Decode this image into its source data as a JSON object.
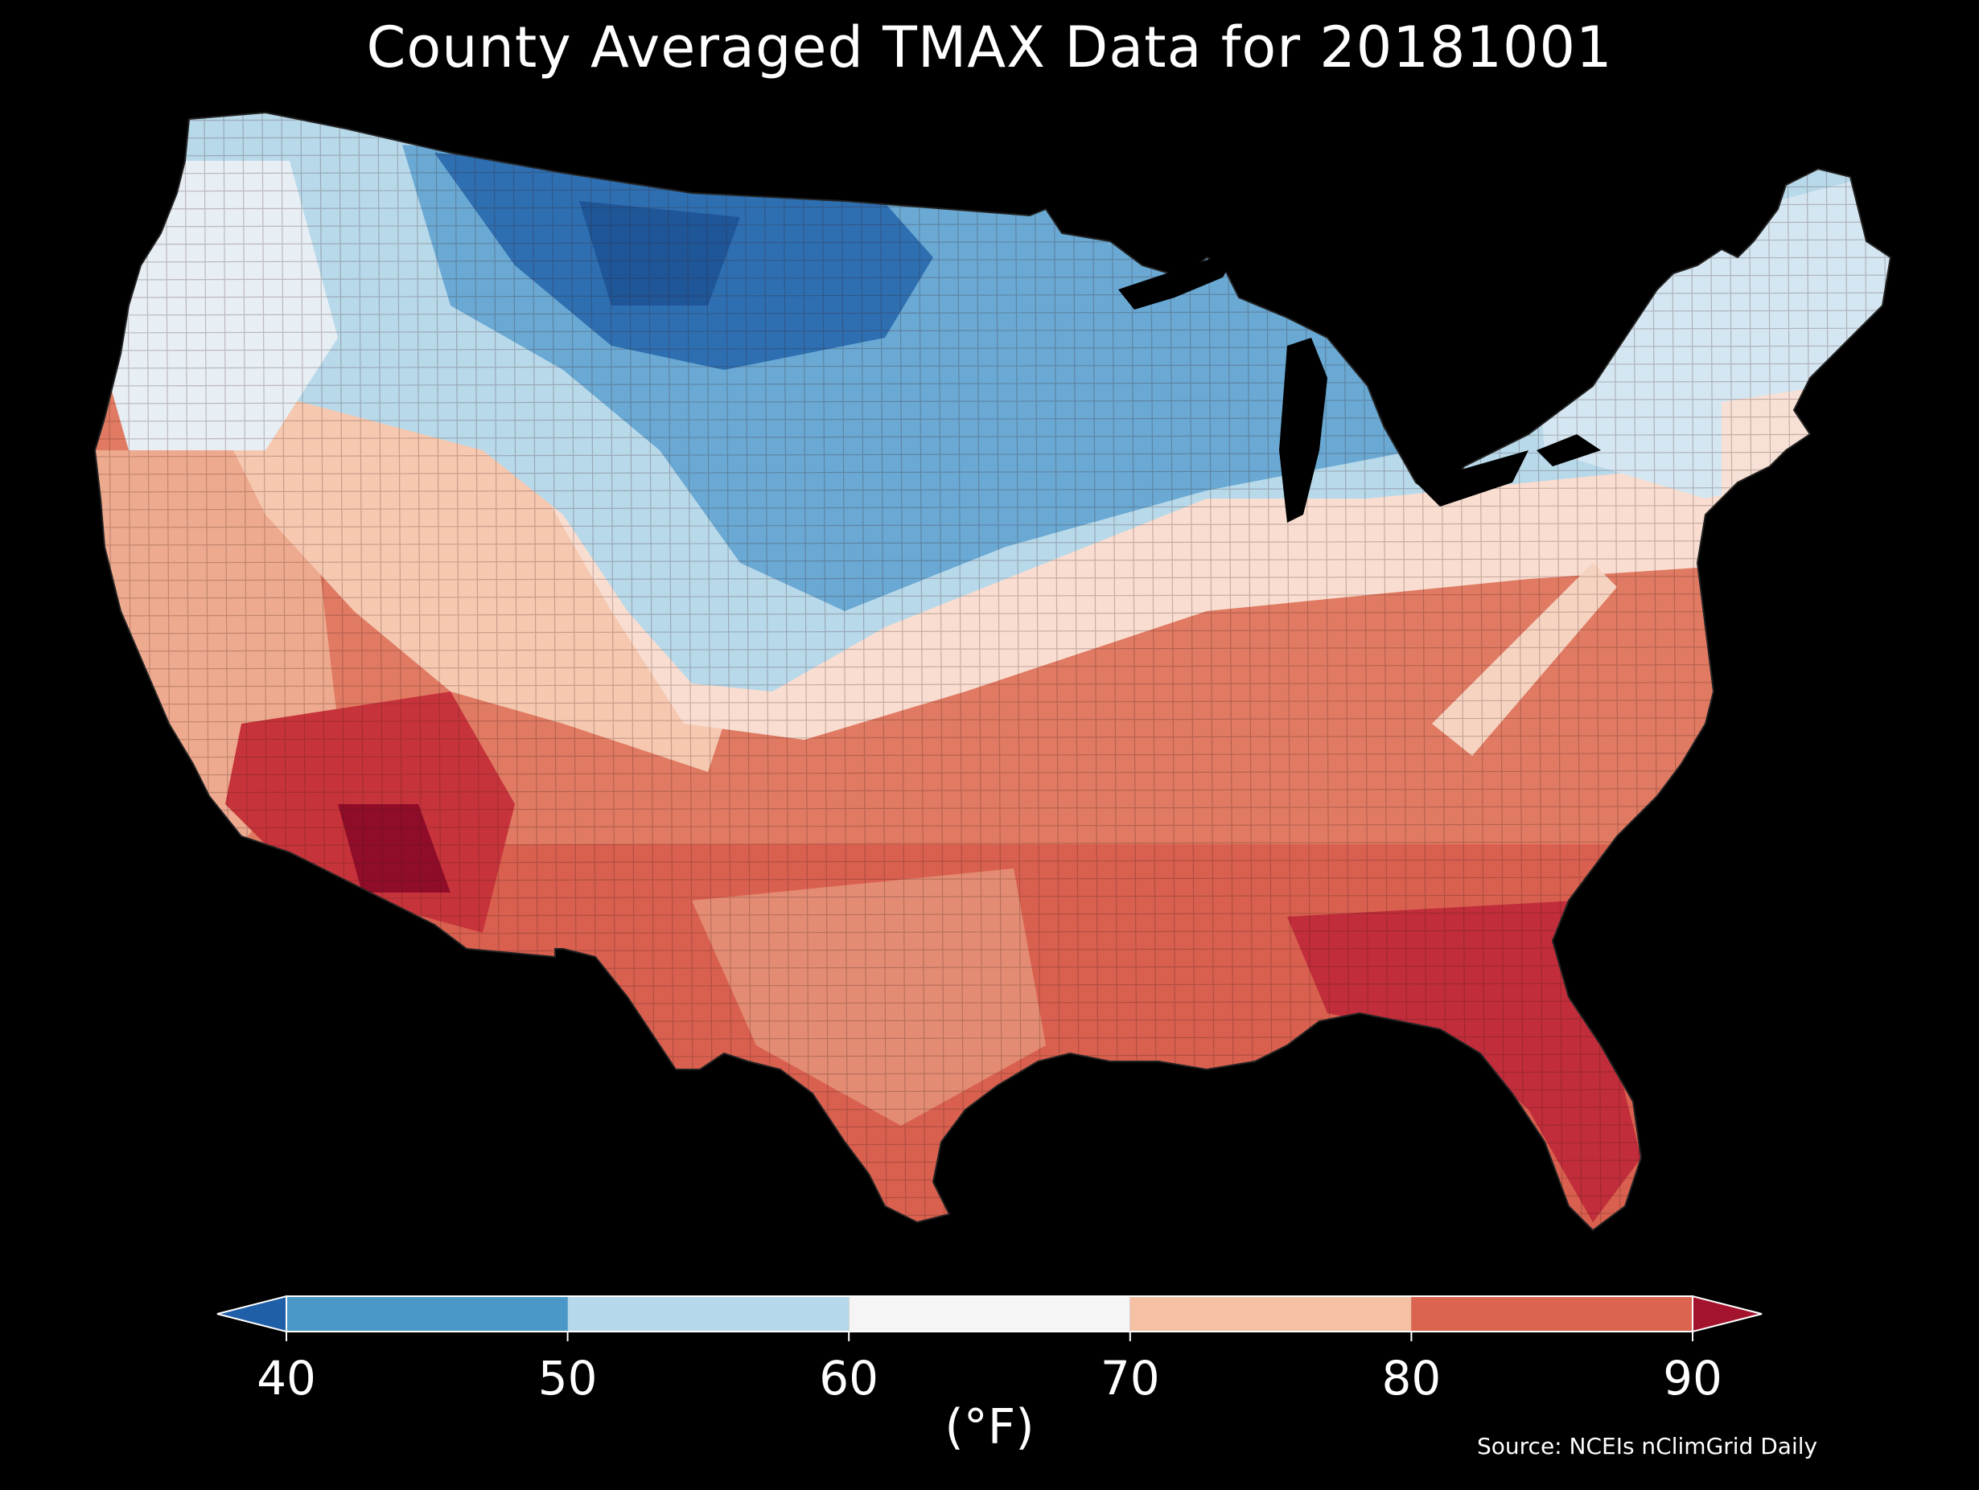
{
  "title": "County Averaged TMAX Data for 20181001",
  "colorbar": {
    "unit_label": "(°F)",
    "ticks": [
      "40",
      "50",
      "60",
      "70",
      "80",
      "90"
    ],
    "bins": [
      {
        "range": "<40",
        "color": "#1f5fa8"
      },
      {
        "range": "40-50",
        "color": "#4b98c8"
      },
      {
        "range": "50-60",
        "color": "#b5d8ea"
      },
      {
        "range": "60-70",
        "color": "#f5f5f5"
      },
      {
        "range": "70-80",
        "color": "#f6c0a5"
      },
      {
        "range": "80-90",
        "color": "#db6451"
      },
      {
        "range": ">90",
        "color": "#a3132e"
      }
    ],
    "extend": "both"
  },
  "source": "Source: NCEIs nClimGrid Daily",
  "map": {
    "region": "contiguous United States counties",
    "variable": "TMAX",
    "date": "20181001",
    "pattern": "cool north-central plains (40-50°F), mild Pacific Northwest and Northeast (50-70°F), warm south (80-90°F+), hottest in southern Arizona and Florida"
  }
}
